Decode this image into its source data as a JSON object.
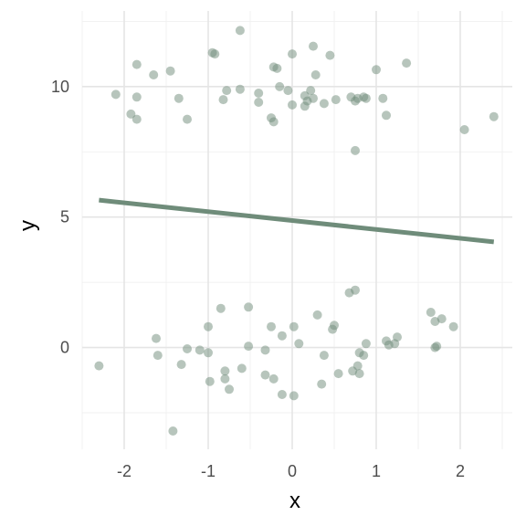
{
  "chart_data": {
    "type": "scatter",
    "title": "",
    "xlabel": "x",
    "ylabel": "y",
    "xlim": [
      -2.5,
      2.62
    ],
    "ylim": [
      -3.9,
      12.9
    ],
    "x_ticks": [
      -2,
      -1,
      0,
      1,
      2
    ],
    "y_ticks": [
      0,
      5,
      10
    ],
    "grid": true,
    "legend": "none",
    "colors": {
      "point": "#6f8c7a",
      "line": "#6f8c7a"
    },
    "series": [
      {
        "values": [
          {
            "x": -2.1,
            "y": 9.7
          },
          {
            "x": -1.85,
            "y": 10.85
          },
          {
            "x": -1.65,
            "y": 10.45
          },
          {
            "x": -1.45,
            "y": 10.6
          },
          {
            "x": -1.35,
            "y": 9.55
          },
          {
            "x": -1.85,
            "y": 9.6
          },
          {
            "x": -1.92,
            "y": 8.95
          },
          {
            "x": -1.85,
            "y": 8.75
          },
          {
            "x": -1.25,
            "y": 8.75
          },
          {
            "x": -0.95,
            "y": 11.3
          },
          {
            "x": -0.92,
            "y": 11.25
          },
          {
            "x": -0.62,
            "y": 12.15
          },
          {
            "x": -0.78,
            "y": 9.85
          },
          {
            "x": -0.82,
            "y": 9.5
          },
          {
            "x": -0.62,
            "y": 9.9
          },
          {
            "x": -0.4,
            "y": 9.75
          },
          {
            "x": -0.4,
            "y": 9.4
          },
          {
            "x": -0.22,
            "y": 10.75
          },
          {
            "x": -0.18,
            "y": 10.7
          },
          {
            "x": 0.0,
            "y": 11.25
          },
          {
            "x": 0.25,
            "y": 11.55
          },
          {
            "x": 0.45,
            "y": 11.2
          },
          {
            "x": 0.28,
            "y": 10.45
          },
          {
            "x": -0.15,
            "y": 10.0
          },
          {
            "x": -0.05,
            "y": 9.85
          },
          {
            "x": 0.0,
            "y": 9.3
          },
          {
            "x": -0.25,
            "y": 8.8
          },
          {
            "x": -0.22,
            "y": 8.65
          },
          {
            "x": 0.15,
            "y": 9.65
          },
          {
            "x": 0.18,
            "y": 9.45
          },
          {
            "x": 0.15,
            "y": 9.25
          },
          {
            "x": 0.22,
            "y": 9.85
          },
          {
            "x": 0.25,
            "y": 9.55
          },
          {
            "x": 0.38,
            "y": 9.35
          },
          {
            "x": 0.52,
            "y": 9.5
          },
          {
            "x": 0.7,
            "y": 9.6
          },
          {
            "x": 0.75,
            "y": 9.45
          },
          {
            "x": 0.78,
            "y": 9.55
          },
          {
            "x": 0.85,
            "y": 9.6
          },
          {
            "x": 0.88,
            "y": 9.55
          },
          {
            "x": 1.0,
            "y": 10.65
          },
          {
            "x": 1.08,
            "y": 9.55
          },
          {
            "x": 1.12,
            "y": 8.9
          },
          {
            "x": 1.36,
            "y": 10.9
          },
          {
            "x": 0.75,
            "y": 7.55
          },
          {
            "x": 2.05,
            "y": 8.35
          },
          {
            "x": 2.4,
            "y": 8.85
          },
          {
            "x": -2.3,
            "y": -0.7
          },
          {
            "x": -1.62,
            "y": 0.35
          },
          {
            "x": -1.6,
            "y": -0.3
          },
          {
            "x": -1.42,
            "y": -3.2
          },
          {
            "x": -1.32,
            "y": -0.65
          },
          {
            "x": -1.25,
            "y": -0.05
          },
          {
            "x": -1.1,
            "y": -0.1
          },
          {
            "x": -1.0,
            "y": -0.2
          },
          {
            "x": -1.0,
            "y": 0.8
          },
          {
            "x": -0.98,
            "y": -1.3
          },
          {
            "x": -0.85,
            "y": 1.5
          },
          {
            "x": -0.8,
            "y": -0.9
          },
          {
            "x": -0.8,
            "y": -1.2
          },
          {
            "x": -0.75,
            "y": -1.6
          },
          {
            "x": -0.6,
            "y": -0.8
          },
          {
            "x": -0.52,
            "y": 1.55
          },
          {
            "x": -0.52,
            "y": 0.05
          },
          {
            "x": -0.32,
            "y": -0.1
          },
          {
            "x": -0.32,
            "y": -1.05
          },
          {
            "x": -0.25,
            "y": 0.8
          },
          {
            "x": -0.22,
            "y": -1.2
          },
          {
            "x": -0.12,
            "y": 0.45
          },
          {
            "x": -0.12,
            "y": -1.8
          },
          {
            "x": 0.02,
            "y": 0.8
          },
          {
            "x": 0.02,
            "y": -1.85
          },
          {
            "x": 0.08,
            "y": 0.15
          },
          {
            "x": 0.3,
            "y": 1.25
          },
          {
            "x": 0.35,
            "y": -1.4
          },
          {
            "x": 0.38,
            "y": -0.3
          },
          {
            "x": 0.48,
            "y": 0.7
          },
          {
            "x": 0.5,
            "y": 0.85
          },
          {
            "x": 0.55,
            "y": -1.0
          },
          {
            "x": 0.68,
            "y": 2.1
          },
          {
            "x": 0.75,
            "y": 2.2
          },
          {
            "x": 0.72,
            "y": -0.9
          },
          {
            "x": 0.78,
            "y": -0.7
          },
          {
            "x": 0.8,
            "y": -1.0
          },
          {
            "x": 0.8,
            "y": -0.2
          },
          {
            "x": 0.85,
            "y": -0.3
          },
          {
            "x": 0.88,
            "y": 0.15
          },
          {
            "x": 1.12,
            "y": 0.25
          },
          {
            "x": 1.15,
            "y": 0.1
          },
          {
            "x": 1.22,
            "y": 0.15
          },
          {
            "x": 1.25,
            "y": 0.4
          },
          {
            "x": 1.65,
            "y": 1.35
          },
          {
            "x": 1.7,
            "y": 1.0
          },
          {
            "x": 1.7,
            "y": 0.0
          },
          {
            "x": 1.72,
            "y": 0.05
          },
          {
            "x": 1.78,
            "y": 1.1
          },
          {
            "x": 1.92,
            "y": 0.8
          }
        ]
      }
    ],
    "fit_line": {
      "x": [
        -2.3,
        2.4
      ],
      "y": [
        5.65,
        4.05
      ]
    }
  }
}
